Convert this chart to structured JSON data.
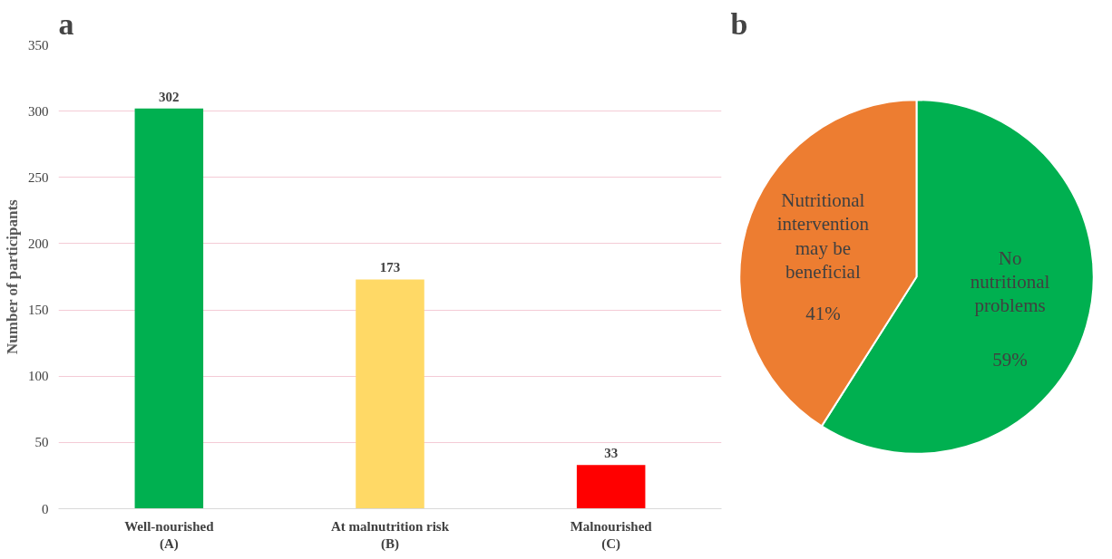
{
  "chart_data": [
    {
      "type": "bar",
      "title": "a",
      "ylabel": "Number of participants",
      "categories": [
        "Well-nourished\n(A)",
        "At malnutrition risk\n(B)",
        "Malnourished\n(C)"
      ],
      "values": [
        302,
        173,
        33
      ],
      "colors": [
        "#00b050",
        "#ffd966",
        "#ff0000"
      ],
      "ylim": [
        0,
        350
      ],
      "yticks": [
        0,
        50,
        100,
        150,
        200,
        250,
        300,
        350
      ],
      "grid": "y",
      "data_labels": true
    },
    {
      "type": "pie",
      "title": "b",
      "categories": [
        "No\nnutritional\nproblems",
        "Nutritional\nintervention\nmay be\nbeneficial"
      ],
      "values": [
        59,
        41
      ],
      "colors": [
        "#00b050",
        "#ed7d31"
      ],
      "value_labels": [
        "59%",
        "41%"
      ]
    }
  ]
}
